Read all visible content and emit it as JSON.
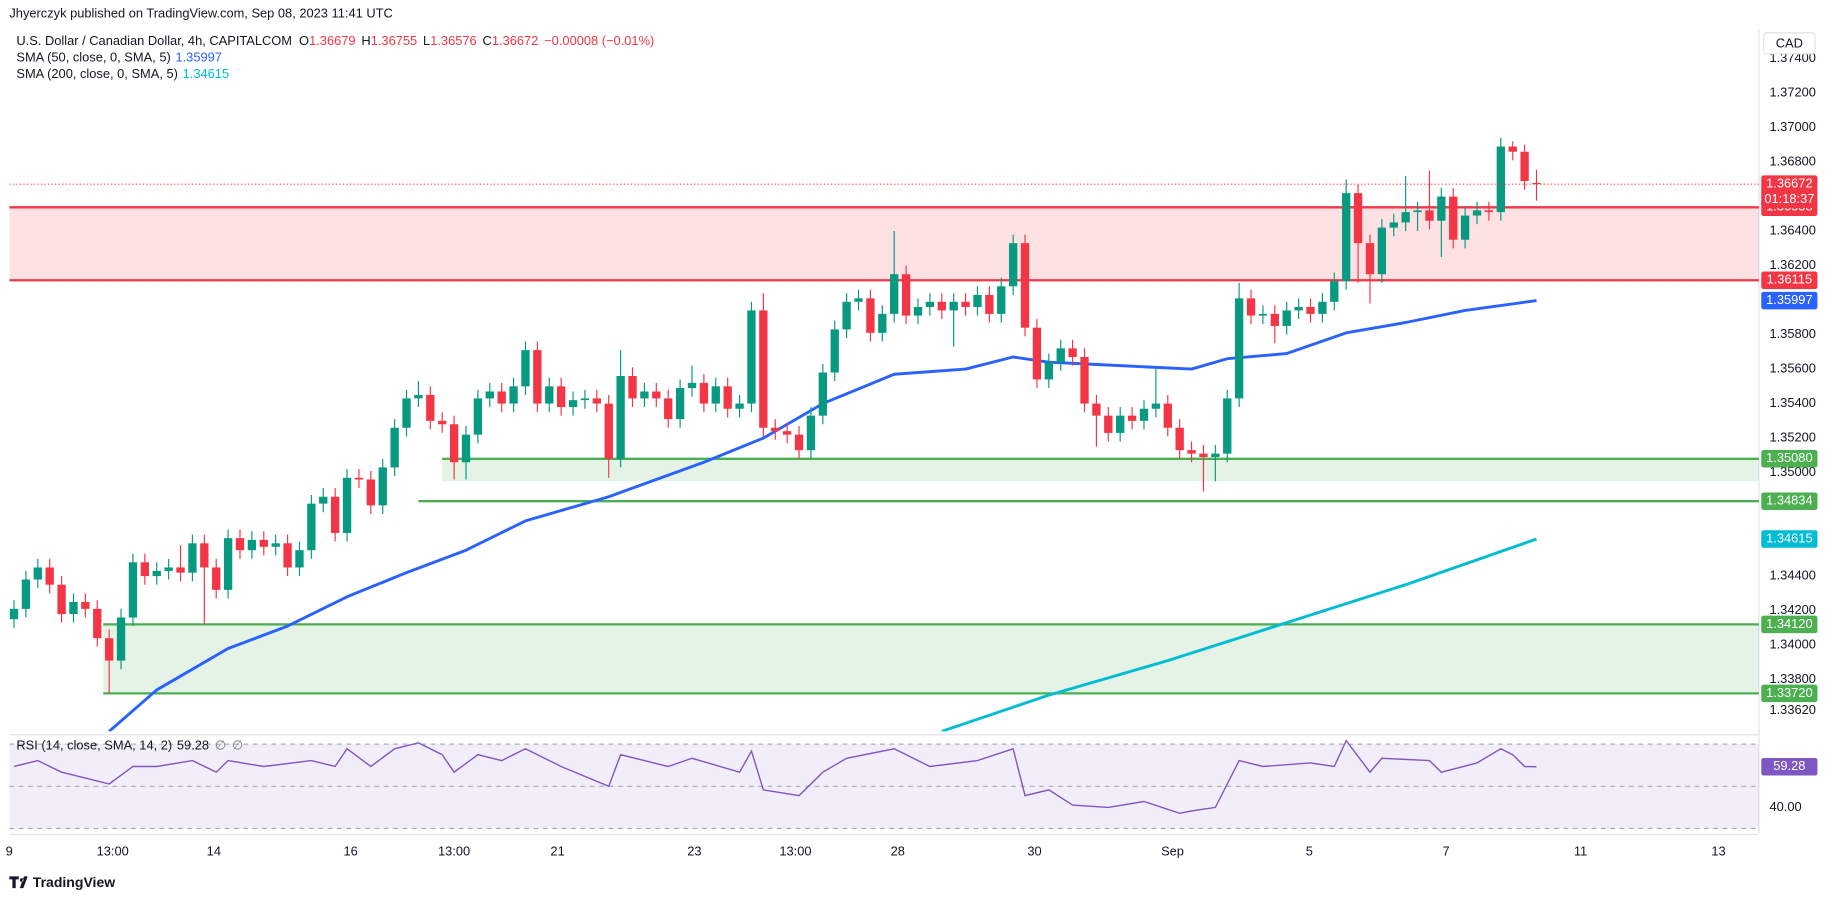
{
  "header": {
    "publisher": "Jhyerczyk published on TradingView.com, Sep 08, 2023 11:41 UTC",
    "symbol": "U.S. Dollar / Canadian Dollar, 4h, CAPITALCOM",
    "ohlc_keys": [
      "O",
      "H",
      "L",
      "C"
    ],
    "ohlc_values": [
      1.36679,
      1.36755,
      1.36576,
      1.36672
    ],
    "change": "−0.00008 (−0.01%)"
  },
  "currency": "CAD",
  "countdown": "01:18:37",
  "brand": "TradingView",
  "chart_data": [
    {
      "type": "candlestick",
      "up_color": "#089981",
      "down_color": "#f23645",
      "open": [
        1.3415,
        1.3421,
        1.3438,
        1.3445,
        1.3435,
        1.3418,
        1.3425,
        1.3421,
        1.3404,
        1.3391,
        1.3416,
        1.3448,
        1.344,
        1.3443,
        1.3445,
        1.3442,
        1.3459,
        1.3445,
        1.3432,
        1.3462,
        1.3455,
        1.3461,
        1.3457,
        1.3459,
        1.3445,
        1.3455,
        1.3482,
        1.3486,
        1.3465,
        1.3497,
        1.3496,
        1.3481,
        1.3503,
        1.3526,
        1.3543,
        1.3545,
        1.353,
        1.3528,
        1.3506,
        1.3522,
        1.3543,
        1.3547,
        1.354,
        1.355,
        1.3571,
        1.354,
        1.355,
        1.3538,
        1.3542,
        1.3543,
        1.354,
        1.3508,
        1.3556,
        1.3543,
        1.3547,
        1.3543,
        1.3531,
        1.3549,
        1.3552,
        1.354,
        1.355,
        1.3537,
        1.354,
        1.3594,
        1.3526,
        1.3524,
        1.3522,
        1.3513,
        1.3533,
        1.3558,
        1.3583,
        1.3599,
        1.3601,
        1.3581,
        1.3592,
        1.3615,
        1.3591,
        1.3596,
        1.3599,
        1.3594,
        1.3599,
        1.3596,
        1.3603,
        1.3592,
        1.3608,
        1.3633,
        1.3584,
        1.3554,
        1.3564,
        1.3572,
        1.3567,
        1.354,
        1.3533,
        1.3523,
        1.3533,
        1.353,
        1.3537,
        1.354,
        1.3526,
        1.3513,
        1.3511,
        1.3509,
        1.3511,
        1.3543,
        1.3601,
        1.3591,
        1.3592,
        1.3585,
        1.3594,
        1.3596,
        1.3592,
        1.3599,
        1.3611,
        1.3662,
        1.3633,
        1.3615,
        1.3642,
        1.3645,
        1.3651,
        1.3652,
        1.3646,
        1.366,
        1.3635,
        1.3649,
        1.3652,
        1.3651,
        1.3689,
        1.3686,
        1.36679
      ],
      "high": [
        1.3426,
        1.3443,
        1.345,
        1.345,
        1.344,
        1.343,
        1.343,
        1.3426,
        1.3409,
        1.3421,
        1.3453,
        1.3453,
        1.3448,
        1.345,
        1.3458,
        1.3464,
        1.3464,
        1.345,
        1.3467,
        1.3467,
        1.3466,
        1.3466,
        1.3464,
        1.3464,
        1.346,
        1.3487,
        1.3491,
        1.3491,
        1.3502,
        1.3502,
        1.3501,
        1.3508,
        1.3531,
        1.3548,
        1.3553,
        1.355,
        1.3535,
        1.3533,
        1.3527,
        1.3548,
        1.3552,
        1.3552,
        1.3555,
        1.3576,
        1.3576,
        1.3555,
        1.3555,
        1.3547,
        1.3548,
        1.3548,
        1.3545,
        1.3571,
        1.3561,
        1.3552,
        1.3552,
        1.3548,
        1.3554,
        1.3562,
        1.3557,
        1.3555,
        1.3555,
        1.3545,
        1.3599,
        1.3604,
        1.3531,
        1.3529,
        1.3527,
        1.3538,
        1.3563,
        1.3588,
        1.3604,
        1.3606,
        1.3606,
        1.3597,
        1.364,
        1.362,
        1.3601,
        1.3604,
        1.3604,
        1.3604,
        1.3604,
        1.3608,
        1.3608,
        1.3613,
        1.3638,
        1.3638,
        1.3589,
        1.3569,
        1.3577,
        1.3577,
        1.3572,
        1.3545,
        1.3538,
        1.3538,
        1.3538,
        1.3542,
        1.356,
        1.3545,
        1.3531,
        1.3518,
        1.3516,
        1.3516,
        1.3548,
        1.361,
        1.3606,
        1.3597,
        1.3597,
        1.3599,
        1.3601,
        1.3601,
        1.3604,
        1.3616,
        1.367,
        1.3667,
        1.3638,
        1.3647,
        1.365,
        1.3672,
        1.3657,
        1.3675,
        1.3665,
        1.3665,
        1.3654,
        1.3657,
        1.3657,
        1.3694,
        1.3692,
        1.369,
        1.36755
      ],
      "low": [
        1.341,
        1.3416,
        1.3433,
        1.343,
        1.3413,
        1.3413,
        1.3416,
        1.3399,
        1.3372,
        1.3386,
        1.3411,
        1.3435,
        1.3435,
        1.3438,
        1.3437,
        1.3437,
        1.3412,
        1.3427,
        1.3427,
        1.345,
        1.345,
        1.3452,
        1.3452,
        1.344,
        1.344,
        1.345,
        1.3477,
        1.346,
        1.346,
        1.3491,
        1.3476,
        1.3476,
        1.3498,
        1.3521,
        1.3538,
        1.3525,
        1.3523,
        1.3496,
        1.3496,
        1.3517,
        1.3538,
        1.3535,
        1.3535,
        1.3545,
        1.3535,
        1.3535,
        1.3533,
        1.3533,
        1.3537,
        1.3535,
        1.3497,
        1.3503,
        1.3538,
        1.3538,
        1.3538,
        1.3526,
        1.3526,
        1.3544,
        1.3535,
        1.3535,
        1.3532,
        1.3532,
        1.3535,
        1.3521,
        1.3519,
        1.3517,
        1.3508,
        1.3508,
        1.3528,
        1.3553,
        1.3578,
        1.3594,
        1.3576,
        1.3576,
        1.3587,
        1.3586,
        1.3586,
        1.3591,
        1.3589,
        1.3573,
        1.3591,
        1.3591,
        1.3587,
        1.3587,
        1.3603,
        1.3579,
        1.3549,
        1.3549,
        1.3559,
        1.3562,
        1.3535,
        1.3515,
        1.3518,
        1.3518,
        1.3525,
        1.3525,
        1.3532,
        1.3521,
        1.3508,
        1.3506,
        1.3489,
        1.3495,
        1.3506,
        1.3538,
        1.3586,
        1.3586,
        1.3575,
        1.358,
        1.3589,
        1.3587,
        1.3587,
        1.3594,
        1.3606,
        1.361,
        1.3598,
        1.361,
        1.3637,
        1.364,
        1.364,
        1.3641,
        1.3625,
        1.363,
        1.363,
        1.3644,
        1.3646,
        1.3646,
        1.3681,
        1.3664,
        1.36576
      ],
      "close": [
        1.3421,
        1.3438,
        1.3445,
        1.3435,
        1.3418,
        1.3425,
        1.3421,
        1.3404,
        1.3391,
        1.3416,
        1.3448,
        1.344,
        1.3443,
        1.3445,
        1.3442,
        1.3459,
        1.3445,
        1.3432,
        1.3462,
        1.3455,
        1.3461,
        1.3457,
        1.3459,
        1.3445,
        1.3455,
        1.3482,
        1.3486,
        1.3465,
        1.3497,
        1.3496,
        1.3481,
        1.3503,
        1.3526,
        1.3543,
        1.3545,
        1.353,
        1.3528,
        1.3506,
        1.3522,
        1.3543,
        1.3547,
        1.354,
        1.355,
        1.3571,
        1.354,
        1.355,
        1.3538,
        1.3542,
        1.3543,
        1.354,
        1.3508,
        1.3556,
        1.3543,
        1.3547,
        1.3543,
        1.3531,
        1.3549,
        1.3552,
        1.354,
        1.355,
        1.3537,
        1.354,
        1.3594,
        1.3526,
        1.3524,
        1.3522,
        1.3513,
        1.3533,
        1.3558,
        1.3583,
        1.3599,
        1.3601,
        1.3581,
        1.3592,
        1.3615,
        1.3591,
        1.3596,
        1.3599,
        1.3594,
        1.3599,
        1.3596,
        1.3603,
        1.3592,
        1.3608,
        1.3633,
        1.3584,
        1.3554,
        1.3564,
        1.3572,
        1.3567,
        1.354,
        1.3533,
        1.3523,
        1.3533,
        1.353,
        1.3537,
        1.354,
        1.3526,
        1.3513,
        1.3511,
        1.3509,
        1.3511,
        1.3543,
        1.3601,
        1.3591,
        1.3592,
        1.3585,
        1.3594,
        1.3596,
        1.3592,
        1.3599,
        1.3611,
        1.3662,
        1.3633,
        1.3615,
        1.3642,
        1.3645,
        1.3651,
        1.3652,
        1.3646,
        1.366,
        1.3635,
        1.3649,
        1.3652,
        1.3651,
        1.3689,
        1.3686,
        1.3669,
        1.36672
      ],
      "xlim": [
        -0.39,
        146.7
      ],
      "xticks": [
        {
          "value": -0.4,
          "label": "9"
        },
        {
          "value": 8.3,
          "label": "13:00"
        },
        {
          "value": 16.8,
          "label": "14"
        },
        {
          "value": 28.3,
          "label": "16"
        },
        {
          "value": 37,
          "label": "13:00"
        },
        {
          "value": 45.7,
          "label": "21"
        },
        {
          "value": 57.2,
          "label": "23"
        },
        {
          "value": 65.7,
          "label": "13:00"
        },
        {
          "value": 74.3,
          "label": "28"
        },
        {
          "value": 85.8,
          "label": "30"
        },
        {
          "value": 97.4,
          "label": "Sep"
        },
        {
          "value": 108.9,
          "label": "5"
        },
        {
          "value": 120.4,
          "label": "7"
        },
        {
          "value": 131.7,
          "label": "11"
        },
        {
          "value": 143.3,
          "label": "13"
        }
      ],
      "ylim": [
        1.335,
        1.3757
      ],
      "yticks": [
        {
          "value": 1.374,
          "label": "1.37400"
        },
        {
          "value": 1.372,
          "label": "1.37200"
        },
        {
          "value": 1.37,
          "label": "1.37000"
        },
        {
          "value": 1.368,
          "label": "1.36800"
        },
        {
          "value": 1.364,
          "label": "1.36400"
        },
        {
          "value": 1.362,
          "label": "1.36200"
        },
        {
          "value": 1.358,
          "label": "1.35800"
        },
        {
          "value": 1.356,
          "label": "1.35600"
        },
        {
          "value": 1.354,
          "label": "1.35400"
        },
        {
          "value": 1.352,
          "label": "1.35200"
        },
        {
          "value": 1.35,
          "label": "1.35000"
        },
        {
          "value": 1.344,
          "label": "1.34400"
        },
        {
          "value": 1.342,
          "label": "1.34200"
        },
        {
          "value": 1.34,
          "label": "1.34000"
        },
        {
          "value": 1.338,
          "label": "1.33800"
        },
        {
          "value": 1.3362,
          "label": "1.33620"
        }
      ],
      "grid": false,
      "indicators": [
        {
          "name": "SMA (50, close, 0, SMA, 5)",
          "color": "#2962ff",
          "x": [
            8,
            12,
            18,
            23,
            28,
            33,
            38,
            43,
            50,
            58,
            63,
            68,
            74,
            80,
            84,
            87,
            93,
            99,
            102,
            107,
            112,
            117,
            122,
            128
          ],
          "values": [
            1.335,
            1.3374,
            1.3398,
            1.3411,
            1.3428,
            1.3442,
            1.3455,
            1.3472,
            1.3486,
            1.3506,
            1.352,
            1.354,
            1.3557,
            1.356,
            1.3567,
            1.3564,
            1.3562,
            1.356,
            1.3566,
            1.3569,
            1.3581,
            1.3587,
            1.3594,
            1.35997
          ]
        },
        {
          "name": "SMA (200, close, 0, SMA, 5)",
          "color": "#00bcd4",
          "x": [
            78,
            87,
            97,
            107,
            117,
            128
          ],
          "values": [
            1.335,
            1.3371,
            1.3391,
            1.3413,
            1.3435,
            1.34615
          ]
        }
      ],
      "levels": [
        {
          "price": 1.36538,
          "color": "#f23645",
          "x_start": -0.39,
          "fill_to": 1.36115
        },
        {
          "price": 1.36115,
          "color": "#f23645",
          "x_start": -0.39
        },
        {
          "price": 1.3508,
          "price_label": "1.35080",
          "color": "#4caf50",
          "x_start": 36,
          "fill_to": 1.3495
        },
        {
          "price": 1.34834,
          "color": "#4caf50",
          "x_start": 34
        },
        {
          "price": 1.3412,
          "price_label": "1.34120",
          "color": "#4caf50",
          "x_start": 7.5,
          "fill_to": 1.3372
        },
        {
          "price": 1.3372,
          "price_label": "1.33720",
          "color": "#4caf50",
          "x_start": 7.5
        }
      ]
    },
    {
      "type": "line",
      "name": "RSI (14, close, SMA, 14, 2)",
      "extra_labels": [
        "∅",
        "∅"
      ],
      "color": "#7e57c2",
      "x": [
        0,
        2,
        4,
        6,
        8,
        10,
        12,
        15,
        17,
        18,
        21,
        25,
        27,
        28,
        30,
        32,
        34,
        36,
        37,
        39,
        41,
        43,
        46,
        50,
        51,
        55,
        57,
        61,
        62,
        63,
        66,
        68,
        70,
        74,
        77,
        81,
        84,
        85,
        87,
        89,
        92,
        95,
        98,
        99,
        101,
        103,
        105,
        109,
        111,
        112,
        114,
        115,
        119,
        120,
        123,
        125,
        126,
        127,
        128
      ],
      "values": [
        59.4,
        62.2,
        56.7,
        53.9,
        51.1,
        59.4,
        59.4,
        62.2,
        56.7,
        62.2,
        59.4,
        62.2,
        59.4,
        67.8,
        59.4,
        67.8,
        70.6,
        65.0,
        56.7,
        65.0,
        62.2,
        67.8,
        59.4,
        50.0,
        65.0,
        59.4,
        63.3,
        56.7,
        66.7,
        48.3,
        45.6,
        56.7,
        63.3,
        67.8,
        59.4,
        62.2,
        67.8,
        45.6,
        48.3,
        41.1,
        40.0,
        42.8,
        37.2,
        38.3,
        40.0,
        62.2,
        59.4,
        61.1,
        59.4,
        71.7,
        56.7,
        63.3,
        62.2,
        56.7,
        61.1,
        67.8,
        65.0,
        59.4,
        59.28
      ],
      "xlim": [
        -0.39,
        146.7
      ],
      "ylim": [
        27.8,
        73.3
      ],
      "yticks": [
        {
          "value": 40,
          "label": "40.00"
        }
      ],
      "levels": [
        70,
        50,
        30
      ]
    }
  ]
}
